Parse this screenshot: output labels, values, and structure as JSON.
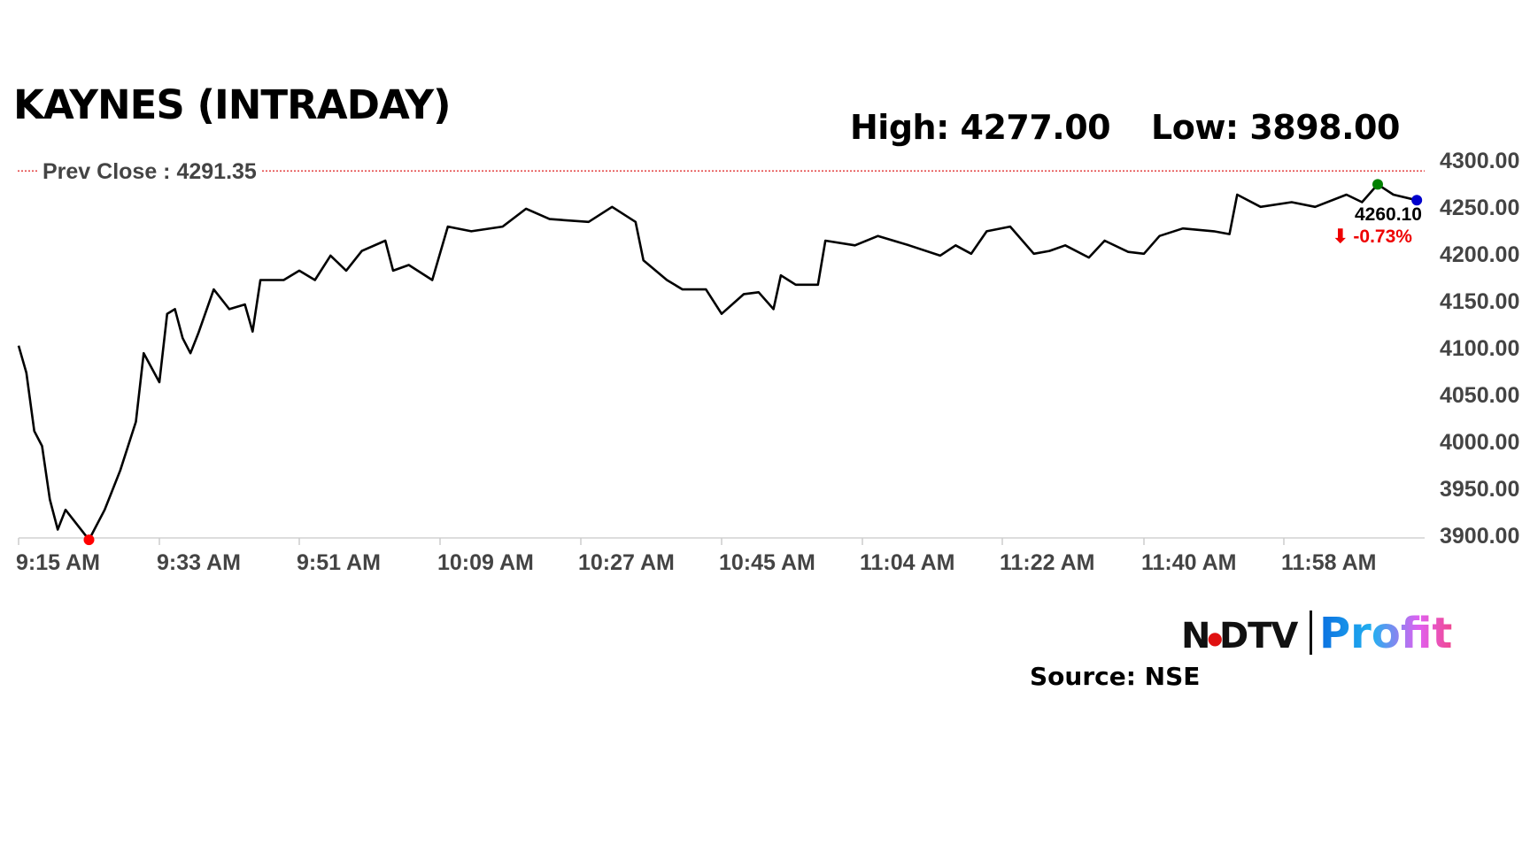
{
  "title": "KAYNES (INTRADAY)",
  "high_label": "High: 4277.00",
  "low_label": "Low: 3898.00",
  "prev_close_label": "Prev Close : 4291.35",
  "last_price_label": "4260.10",
  "change_label": "⬇ -0.73%",
  "source": "Source: NSE",
  "logo": {
    "left": "NDTV",
    "right": "Profit"
  },
  "colors": {
    "line": "#000000",
    "prev_close": "#e03030",
    "low_marker": "#ff0000",
    "high_marker": "#008000",
    "last_marker": "#0000cc",
    "change": "#ee0000"
  },
  "chart_data": {
    "type": "line",
    "title": "KAYNES (INTRADAY)",
    "ylim": [
      3900,
      4300
    ],
    "y_ticks": [
      "4300.00",
      "4250.00",
      "4200.00",
      "4150.00",
      "4100.00",
      "4050.00",
      "4000.00",
      "3950.00",
      "3900.00"
    ],
    "x_ticks": [
      "9:15 AM",
      "9:33 AM",
      "9:51 AM",
      "10:09 AM",
      "10:27 AM",
      "10:45 AM",
      "11:04 AM",
      "11:22 AM",
      "11:40 AM",
      "11:58 AM"
    ],
    "prev_close": 4291.35,
    "high": 4277.0,
    "low": 3898.0,
    "last": 4260.1,
    "change_pct": -0.73,
    "grid": false,
    "series": [
      {
        "x": [
          "9:15",
          "9:16",
          "9:17",
          "9:18",
          "9:19",
          "9:20",
          "9:21",
          "9:24",
          "9:26",
          "9:28",
          "9:30",
          "9:31",
          "9:33",
          "9:34",
          "9:35",
          "9:36",
          "9:37",
          "9:38",
          "9:40",
          "9:42",
          "9:44",
          "9:45",
          "9:46",
          "9:49",
          "9:51",
          "9:53",
          "9:55",
          "9:57",
          "9:59",
          "10:02",
          "10:03",
          "10:05",
          "10:08",
          "10:10",
          "10:13",
          "10:17",
          "10:20",
          "10:23",
          "10:28",
          "10:31",
          "10:34",
          "10:35",
          "10:38",
          "10:40",
          "10:43",
          "10:45",
          "10:48",
          "10:50",
          "10:52",
          "10:53",
          "10:55",
          "10:58",
          "10:59",
          "11:03",
          "11:06",
          "11:10",
          "11:14",
          "11:16",
          "11:18",
          "11:20",
          "11:23",
          "11:26",
          "11:28",
          "11:30",
          "11:33",
          "11:35",
          "11:38",
          "11:40",
          "11:42",
          "11:45",
          "11:49",
          "11:51",
          "11:52",
          "11:55",
          "11:59",
          "12:02",
          "12:06",
          "12:08",
          "12:10",
          "12:12",
          "12:15"
        ],
        "y": [
          4105,
          4076,
          4014,
          3998,
          3941,
          3909,
          3930,
          3898,
          3930,
          3972,
          4024,
          4097,
          4066,
          4139,
          4144,
          4113,
          4097,
          4118,
          4165,
          4144,
          4149,
          4120,
          4175,
          4175,
          4185,
          4175,
          4201,
          4185,
          4206,
          4217,
          4185,
          4191,
          4175,
          4232,
          4227,
          4232,
          4251,
          4240,
          4237,
          4253,
          4237,
          4196,
          4175,
          4165,
          4165,
          4139,
          4160,
          4162,
          4144,
          4180,
          4170,
          4170,
          4217,
          4212,
          4222,
          4212,
          4201,
          4212,
          4203,
          4227,
          4232,
          4203,
          4206,
          4212,
          4199,
          4217,
          4205,
          4203,
          4222,
          4230,
          4227,
          4224,
          4266,
          4253,
          4258,
          4253,
          4266,
          4258,
          4277,
          4266,
          4260.1
        ]
      }
    ]
  }
}
